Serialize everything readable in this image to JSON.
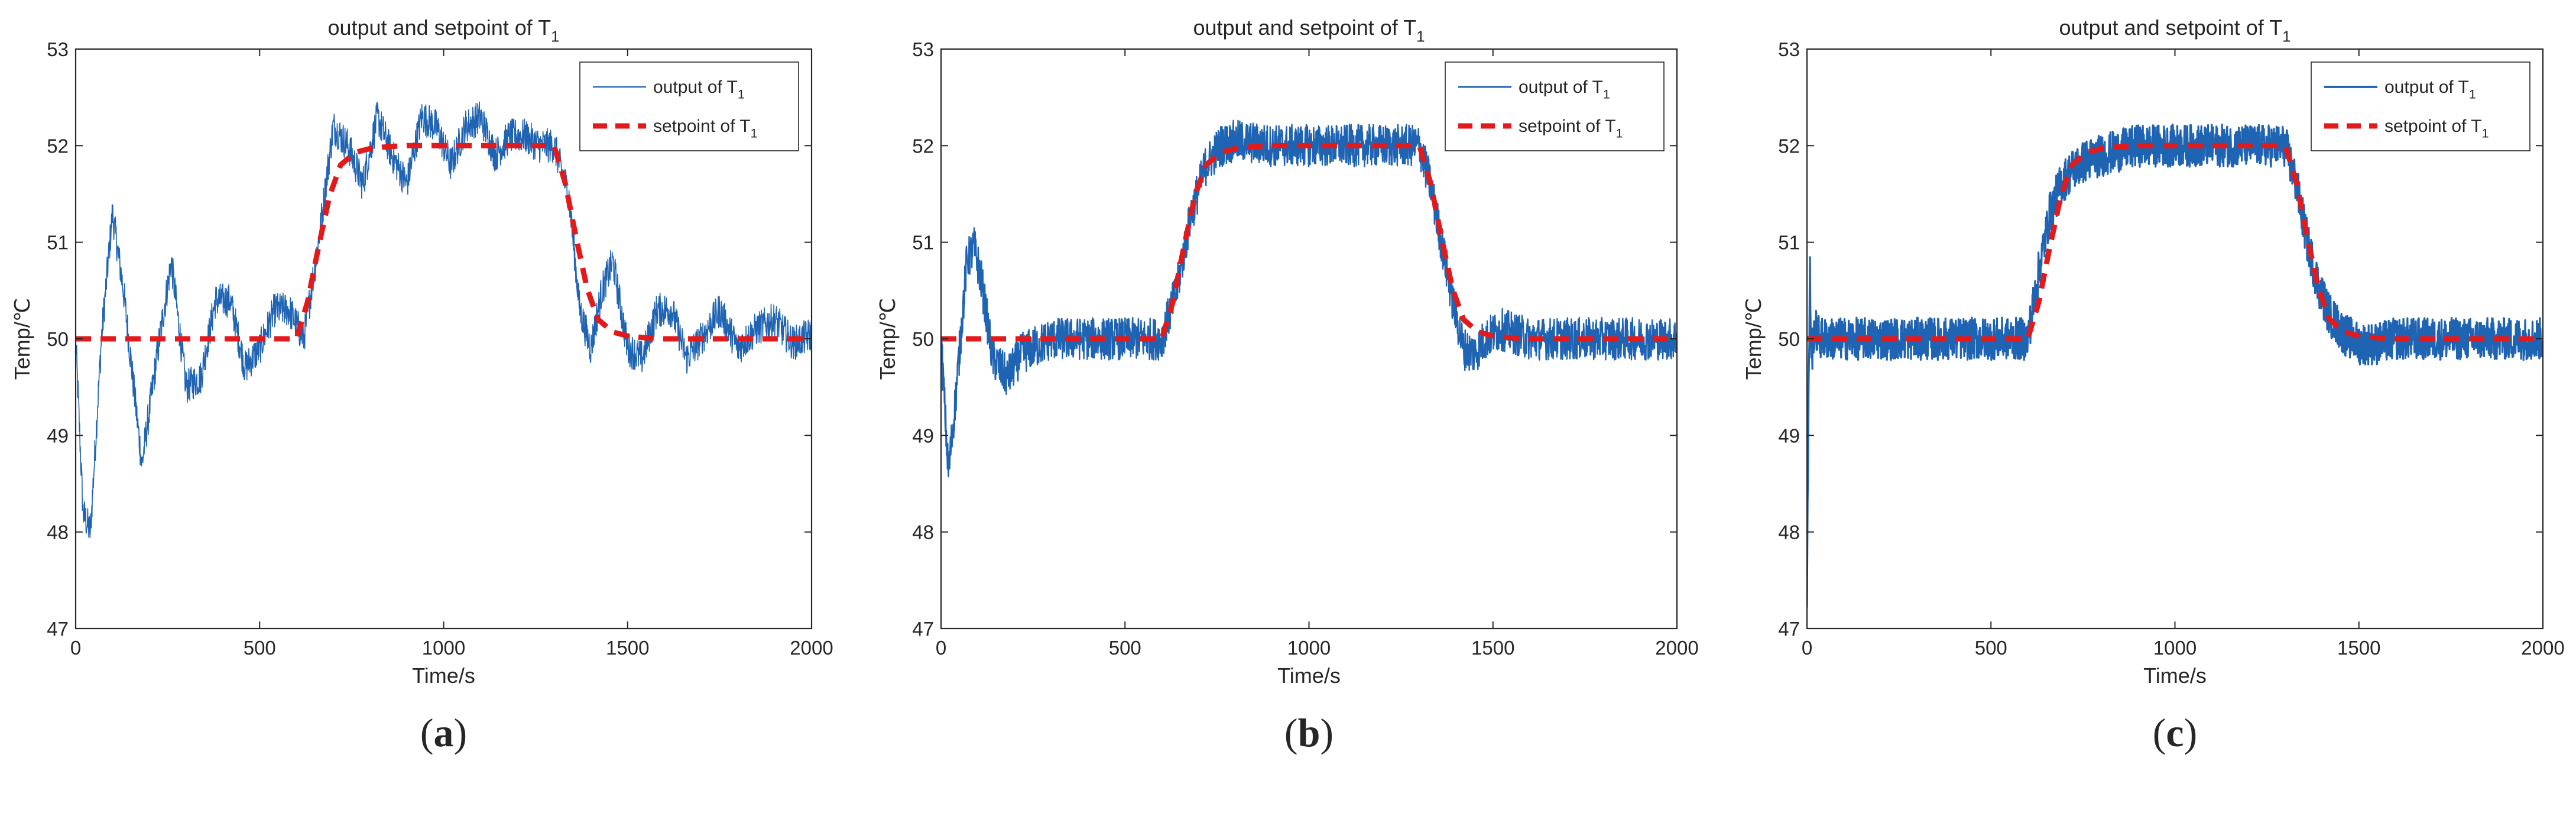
{
  "colors": {
    "output": "#1f63b3",
    "setpoint": "#e31a1c",
    "axis": "#262626",
    "text": "#262626"
  },
  "chart_data": [
    {
      "type": "line",
      "panel_label": "a",
      "title": "output and setpoint of T",
      "title_subscript": "1",
      "xlabel": "Time/s",
      "ylabel": "Temp/℃",
      "xlim": [
        0,
        2000
      ],
      "ylim": [
        47,
        53
      ],
      "xticks": [
        0,
        500,
        1000,
        1500,
        2000
      ],
      "yticks": [
        47,
        48,
        49,
        50,
        51,
        52,
        53
      ],
      "grid": false,
      "legend": {
        "position": "top-right",
        "output_style": "thin"
      },
      "series": [
        {
          "name": "output of T",
          "name_subscript": "1",
          "style": "solid",
          "noise_amplitude": 0.18,
          "x": [
            0,
            20,
            40,
            70,
            100,
            130,
            180,
            220,
            260,
            300,
            340,
            380,
            420,
            460,
            500,
            540,
            580,
            620,
            660,
            700,
            740,
            780,
            820,
            860,
            900,
            940,
            980,
            1020,
            1060,
            1100,
            1140,
            1180,
            1220,
            1260,
            1300,
            1340,
            1370,
            1400,
            1430,
            1460,
            1500,
            1540,
            1580,
            1620,
            1660,
            1700,
            1750,
            1800,
            1850,
            1900,
            1950,
            2000
          ],
          "y": [
            50.0,
            48.2,
            48.0,
            50.0,
            51.3,
            50.5,
            48.7,
            49.8,
            50.8,
            49.5,
            49.6,
            50.4,
            50.4,
            49.7,
            49.9,
            50.3,
            50.3,
            50.0,
            51.0,
            52.2,
            52.0,
            51.6,
            52.3,
            51.9,
            51.6,
            52.3,
            52.2,
            51.8,
            52.2,
            52.3,
            51.9,
            52.1,
            52.1,
            52.0,
            52.0,
            51.5,
            50.3,
            49.9,
            50.5,
            50.8,
            49.9,
            49.8,
            50.3,
            50.3,
            49.8,
            50.0,
            50.3,
            49.9,
            50.1,
            50.2,
            49.95,
            50.05
          ]
        },
        {
          "name": "setpoint of T",
          "name_subscript": "1",
          "style": "dashed",
          "x": [
            0,
            600,
            630,
            660,
            690,
            720,
            760,
            800,
            850,
            900,
            1000,
            1300,
            1330,
            1360,
            1390,
            1420,
            1460,
            1500,
            1550,
            1600,
            2000
          ],
          "y": [
            50.0,
            50.0,
            50.38,
            50.95,
            51.48,
            51.8,
            51.93,
            51.97,
            51.99,
            52.0,
            52.0,
            52.0,
            51.62,
            51.05,
            50.52,
            50.2,
            50.07,
            50.03,
            50.01,
            50.0,
            50.0
          ]
        }
      ]
    },
    {
      "type": "line",
      "panel_label": "b",
      "title": "output and setpoint of T",
      "title_subscript": "1",
      "xlabel": "Time/s",
      "ylabel": "Temp/℃",
      "xlim": [
        0,
        2000
      ],
      "ylim": [
        47,
        53
      ],
      "xticks": [
        0,
        500,
        1000,
        1500,
        2000
      ],
      "yticks": [
        47,
        48,
        49,
        50,
        51,
        52,
        53
      ],
      "grid": false,
      "legend": {
        "position": "top-right",
        "output_style": "medium"
      },
      "series": [
        {
          "name": "output of T",
          "name_subscript": "1",
          "style": "solid",
          "noise_amplitude": 0.22,
          "x": [
            0,
            20,
            40,
            70,
            90,
            110,
            140,
            180,
            220,
            300,
            400,
            500,
            600,
            640,
            680,
            720,
            760,
            800,
            900,
            1000,
            1100,
            1200,
            1300,
            1330,
            1360,
            1390,
            1420,
            1450,
            1480,
            1520,
            1560,
            1600,
            1700,
            1800,
            1900,
            2000
          ],
          "y": [
            50.0,
            48.6,
            49.4,
            50.8,
            50.95,
            50.6,
            49.8,
            49.6,
            49.85,
            50.0,
            50.0,
            50.0,
            50.0,
            50.5,
            51.3,
            51.8,
            52.0,
            52.05,
            52.0,
            52.0,
            52.0,
            52.0,
            52.0,
            51.6,
            51.0,
            50.4,
            49.9,
            49.85,
            50.0,
            50.1,
            50.05,
            50.0,
            50.0,
            50.0,
            50.0,
            50.0
          ]
        },
        {
          "name": "setpoint of T",
          "name_subscript": "1",
          "style": "dashed",
          "x": [
            0,
            600,
            630,
            660,
            690,
            720,
            760,
            800,
            850,
            900,
            1000,
            1300,
            1330,
            1360,
            1390,
            1420,
            1460,
            1500,
            1550,
            1600,
            2000
          ],
          "y": [
            50.0,
            50.0,
            50.38,
            50.95,
            51.48,
            51.8,
            51.93,
            51.97,
            51.99,
            52.0,
            52.0,
            52.0,
            51.62,
            51.05,
            50.52,
            50.2,
            50.07,
            50.03,
            50.01,
            50.0,
            50.0
          ]
        }
      ]
    },
    {
      "type": "line",
      "panel_label": "c",
      "title": "output and setpoint of T",
      "title_subscript": "1",
      "xlabel": "Time/s",
      "ylabel": "Temp/℃",
      "xlim": [
        0,
        2000
      ],
      "ylim": [
        47,
        53
      ],
      "xticks": [
        0,
        500,
        1000,
        1500,
        2000
      ],
      "yticks": [
        47,
        48,
        49,
        50,
        51,
        52,
        53
      ],
      "grid": false,
      "legend": {
        "position": "top-right",
        "output_style": "thick"
      },
      "series": [
        {
          "name": "output of T",
          "name_subscript": "1",
          "style": "solid",
          "noise_amplitude": 0.22,
          "x": [
            0,
            4,
            8,
            12,
            20,
            40,
            100,
            200,
            300,
            400,
            500,
            600,
            630,
            660,
            690,
            720,
            760,
            800,
            850,
            900,
            1000,
            1100,
            1200,
            1300,
            1330,
            1360,
            1390,
            1420,
            1460,
            1500,
            1550,
            1600,
            1700,
            1800,
            1900,
            2000
          ],
          "y": [
            47.4,
            49.2,
            50.7,
            49.8,
            50.1,
            50.0,
            50.0,
            50.0,
            50.0,
            50.0,
            50.0,
            50.0,
            50.7,
            51.3,
            51.6,
            51.75,
            51.85,
            51.9,
            51.95,
            52.0,
            52.0,
            52.0,
            52.0,
            52.0,
            51.6,
            51.0,
            50.55,
            50.25,
            50.05,
            49.95,
            49.95,
            50.0,
            50.0,
            50.0,
            50.0,
            50.0
          ]
        },
        {
          "name": "setpoint of T",
          "name_subscript": "1",
          "style": "dashed",
          "x": [
            0,
            600,
            630,
            660,
            690,
            720,
            760,
            800,
            850,
            900,
            1000,
            1300,
            1330,
            1360,
            1390,
            1420,
            1460,
            1500,
            1550,
            1600,
            2000
          ],
          "y": [
            50.0,
            50.0,
            50.38,
            50.95,
            51.48,
            51.8,
            51.93,
            51.97,
            51.99,
            52.0,
            52.0,
            52.0,
            51.62,
            51.05,
            50.52,
            50.2,
            50.07,
            50.03,
            50.01,
            50.0,
            50.0
          ]
        }
      ]
    }
  ]
}
